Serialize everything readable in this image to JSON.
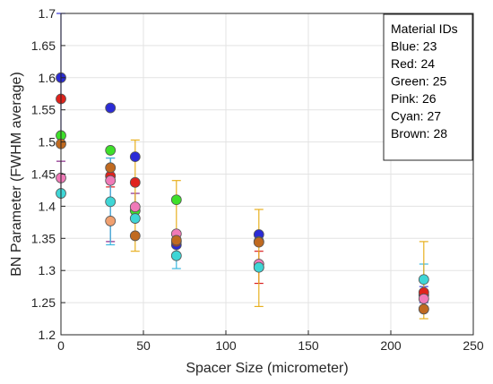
{
  "chart_data": {
    "type": "scatter",
    "xlabel": "Spacer Size (micrometer)",
    "ylabel": "BN Parameter (FWHM average)",
    "xlim": [
      0,
      250
    ],
    "ylim": [
      1.2,
      1.7
    ],
    "xticks": [
      0,
      50,
      100,
      150,
      200,
      250
    ],
    "xtick_labels": [
      "0",
      "50",
      "100",
      "150",
      "200",
      "250"
    ],
    "yticks": [
      1.2,
      1.25,
      1.3,
      1.35,
      1.4,
      1.45,
      1.5,
      1.55,
      1.6,
      1.65,
      1.7
    ],
    "ytick_labels": [
      "1.2",
      "1.25",
      "1.3",
      "1.35",
      "1.4",
      "1.45",
      "1.5",
      "1.55",
      "1.6",
      "1.65",
      "1.7"
    ],
    "grid": true,
    "legend": {
      "placement": "top-right",
      "lines": [
        "Material IDs",
        "Blue: 23",
        "Red: 24",
        "Green: 25",
        "Pink: 26",
        "Cyan: 27",
        "Brown: 28"
      ]
    },
    "series": [
      {
        "id": "blue",
        "color": "#2b2bd6",
        "errcolor": "#3a3ad6",
        "points": [
          {
            "x": 0,
            "y": 1.6,
            "lo": 1.5,
            "hi": 1.7
          },
          {
            "x": 30,
            "y": 1.553,
            "lo": 1.553,
            "hi": 1.553
          },
          {
            "x": 45,
            "y": 1.477,
            "lo": 1.477,
            "hi": 1.477
          },
          {
            "x": 70,
            "y": 1.34,
            "lo": 1.34,
            "hi": 1.34
          },
          {
            "x": 120,
            "y": 1.356,
            "lo": 1.356,
            "hi": 1.356
          },
          {
            "x": 220,
            "y": 1.262,
            "lo": 1.25,
            "hi": 1.275
          }
        ]
      },
      {
        "id": "red",
        "color": "#e0221c",
        "errcolor": "#d92020",
        "points": [
          {
            "x": 0,
            "y": 1.567,
            "lo": 1.567,
            "hi": 1.567
          },
          {
            "x": 30,
            "y": 1.447,
            "lo": 1.43,
            "hi": 1.46
          },
          {
            "x": 45,
            "y": 1.437,
            "lo": 1.437,
            "hi": 1.437
          },
          {
            "x": 70,
            "y": 1.345,
            "lo": 1.345,
            "hi": 1.345
          },
          {
            "x": 120,
            "y": 1.305,
            "lo": 1.28,
            "hi": 1.33
          },
          {
            "x": 220,
            "y": 1.266,
            "lo": 1.266,
            "hi": 1.266
          }
        ]
      },
      {
        "id": "green",
        "color": "#3ee02a",
        "errcolor": "#3ad62a",
        "points": [
          {
            "x": 0,
            "y": 1.51,
            "lo": 1.51,
            "hi": 1.51
          },
          {
            "x": 30,
            "y": 1.487,
            "lo": 1.487,
            "hi": 1.487
          },
          {
            "x": 45,
            "y": 1.393,
            "lo": 1.393,
            "hi": 1.393
          },
          {
            "x": 70,
            "y": 1.41,
            "lo": 1.41,
            "hi": 1.41
          },
          {
            "x": 120,
            "y": 1.345,
            "lo": 1.345,
            "hi": 1.345
          },
          {
            "x": 220,
            "y": 1.24,
            "lo": 1.24,
            "hi": 1.24
          }
        ]
      },
      {
        "id": "pink",
        "color": "#f07ab8",
        "errcolor": "#8a2b8a",
        "points": [
          {
            "x": 0,
            "y": 1.444,
            "lo": 1.42,
            "hi": 1.47
          },
          {
            "x": 30,
            "y": 1.44,
            "lo": 1.345,
            "hi": 1.475
          },
          {
            "x": 45,
            "y": 1.399,
            "lo": 1.38,
            "hi": 1.42
          },
          {
            "x": 70,
            "y": 1.357,
            "lo": 1.357,
            "hi": 1.357
          },
          {
            "x": 120,
            "y": 1.31,
            "lo": 1.31,
            "hi": 1.31
          },
          {
            "x": 220,
            "y": 1.256,
            "lo": 1.256,
            "hi": 1.256
          }
        ]
      },
      {
        "id": "cyan",
        "color": "#3fd6d6",
        "errcolor": "#3ab8e0",
        "points": [
          {
            "x": 0,
            "y": 1.42,
            "lo": 1.42,
            "hi": 1.42
          },
          {
            "x": 30,
            "y": 1.407,
            "lo": 1.34,
            "hi": 1.475
          },
          {
            "x": 45,
            "y": 1.381,
            "lo": 1.381,
            "hi": 1.381
          },
          {
            "x": 70,
            "y": 1.323,
            "lo": 1.303,
            "hi": 1.343
          },
          {
            "x": 120,
            "y": 1.305,
            "lo": 1.305,
            "hi": 1.305
          },
          {
            "x": 220,
            "y": 1.286,
            "lo": 1.26,
            "hi": 1.31
          }
        ]
      },
      {
        "id": "brown",
        "color": "#c06a20",
        "errcolor": "#e8b020",
        "points": [
          {
            "x": 0,
            "y": 1.497,
            "lo": 1.497,
            "hi": 1.497
          },
          {
            "x": 30,
            "y": 1.46,
            "lo": 1.46,
            "hi": 1.46
          },
          {
            "x": 45,
            "y": 1.354,
            "lo": 1.33,
            "hi": 1.503
          },
          {
            "x": 70,
            "y": 1.347,
            "lo": 1.345,
            "hi": 1.44
          },
          {
            "x": 120,
            "y": 1.344,
            "lo": 1.244,
            "hi": 1.395
          },
          {
            "x": 220,
            "y": 1.24,
            "lo": 1.225,
            "hi": 1.345
          }
        ]
      },
      {
        "id": "orange",
        "color": "#f0a070",
        "errcolor": "#e8b020",
        "points": [
          {
            "x": 30,
            "y": 1.377,
            "lo": 1.377,
            "hi": 1.377
          }
        ]
      }
    ]
  }
}
